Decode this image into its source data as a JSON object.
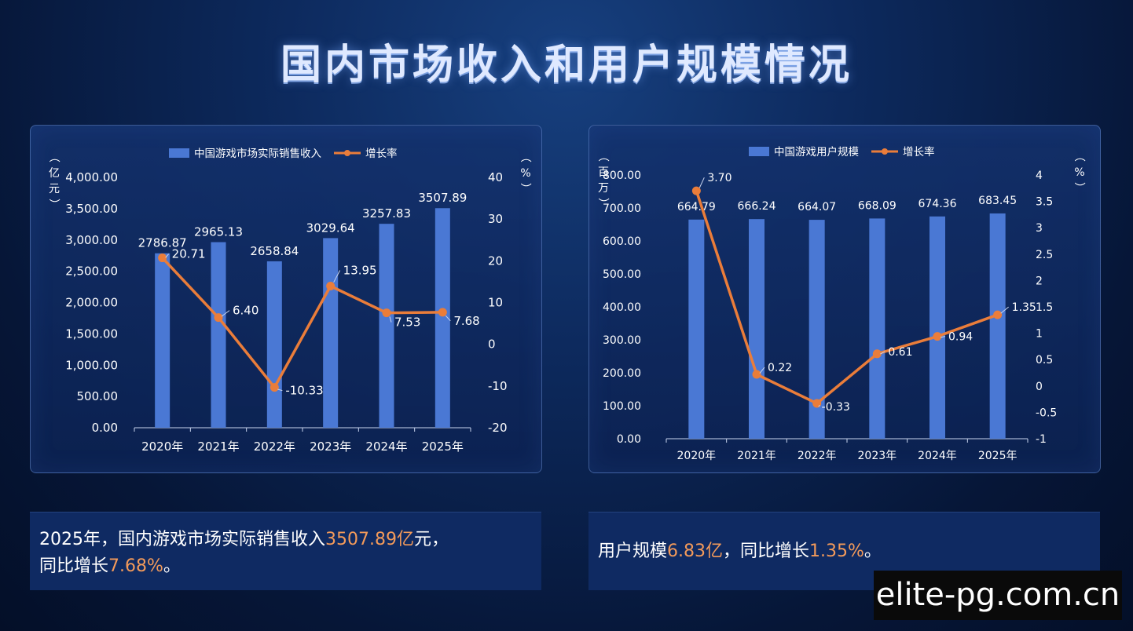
{
  "page": {
    "title": "国内市场收入和用户规模情况",
    "watermark": "elite-pg.com.cn"
  },
  "colors": {
    "bar": "#4a78d4",
    "line": "#ea7d3a",
    "highlight": "#f39a5a"
  },
  "chart_data": [
    {
      "type": "bar",
      "categories": [
        "2020年",
        "2021年",
        "2022年",
        "2023年",
        "2024年",
        "2025年"
      ],
      "series": [
        {
          "name": "中国游戏市场实际销售收入",
          "type": "bar",
          "axis": "left",
          "values": [
            2786.87,
            2965.13,
            2658.84,
            3029.64,
            3257.83,
            3507.89
          ],
          "labels": [
            "2786.87",
            "2965.13",
            "2658.84",
            "3029.64",
            "3257.83",
            "3507.89"
          ]
        },
        {
          "name": "增长率",
          "type": "line",
          "axis": "right",
          "values": [
            20.71,
            6.4,
            -10.33,
            13.95,
            7.53,
            7.68
          ],
          "labels": [
            "20.71",
            "6.40",
            "-10.33",
            "13.95",
            "7.53",
            "7.68"
          ]
        }
      ],
      "y_left": {
        "label": "（亿元）",
        "ylim": [
          0,
          4000
        ],
        "ticks": [
          "0.00",
          "500.00",
          "1,000.00",
          "1,500.00",
          "2,000.00",
          "2,500.00",
          "3,000.00",
          "3,500.00",
          "4,000.00"
        ]
      },
      "y_right": {
        "label": "（%）",
        "ylim": [
          -20,
          40
        ],
        "ticks": [
          "-20",
          "-10",
          "0",
          "10",
          "20",
          "30",
          "40"
        ]
      },
      "legend": "top-center"
    },
    {
      "type": "bar",
      "categories": [
        "2020年",
        "2021年",
        "2022年",
        "2023年",
        "2024年",
        "2025年"
      ],
      "series": [
        {
          "name": "中国游戏用户规模",
          "type": "bar",
          "axis": "left",
          "values": [
            664.79,
            666.24,
            664.07,
            668.09,
            674.36,
            683.45
          ],
          "labels": [
            "664.79",
            "666.24",
            "664.07",
            "668.09",
            "674.36",
            "683.45"
          ]
        },
        {
          "name": "增长率",
          "type": "line",
          "axis": "right",
          "values": [
            3.7,
            0.22,
            -0.33,
            0.61,
            0.94,
            1.35
          ],
          "labels": [
            "3.70",
            "0.22",
            "-0.33",
            "0.61",
            "0.94",
            "1.35"
          ]
        }
      ],
      "y_left": {
        "label": "（百万）",
        "ylim": [
          0,
          800
        ],
        "ticks": [
          "0.00",
          "100.00",
          "200.00",
          "300.00",
          "400.00",
          "500.00",
          "600.00",
          "700.00",
          "800.00"
        ]
      },
      "y_right": {
        "label": "（%）",
        "ylim": [
          -1,
          4
        ],
        "ticks": [
          "-1",
          "-0.5",
          "0",
          "0.5",
          "1",
          "1.5",
          "2",
          "2.5",
          "3",
          "3.5",
          "4"
        ]
      },
      "legend": "top-center"
    }
  ],
  "captions": {
    "left": {
      "p1": "2025年，国内游戏市场实际销售收入",
      "h1": "3507.89亿",
      "p2": "元，",
      "p3": "同比增长",
      "h2": "7.68%",
      "p4": "。"
    },
    "right": {
      "p1": "用户规模",
      "h1": "6.83亿",
      "p2": "，同比增长",
      "h2": "1.35%",
      "p3": "。"
    }
  }
}
